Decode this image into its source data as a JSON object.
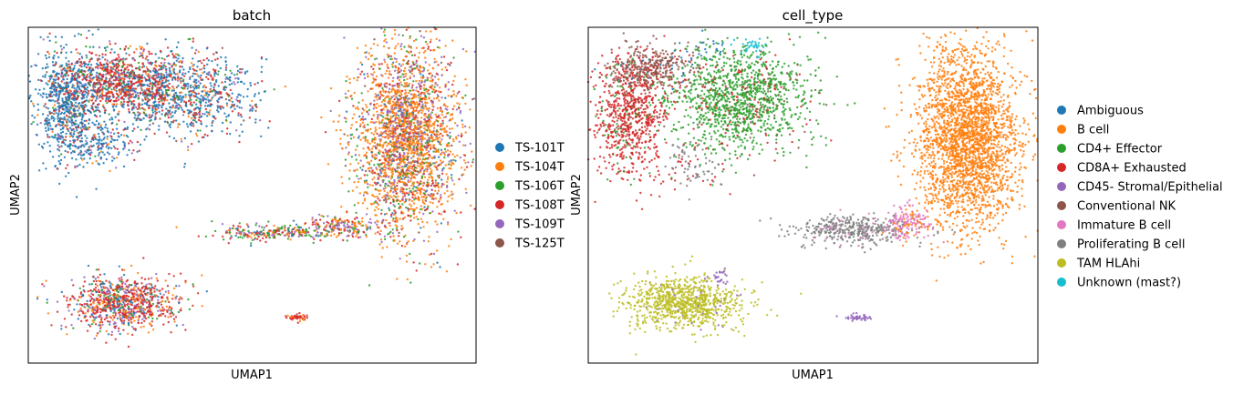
{
  "chart_data": [
    {
      "type": "scatter",
      "title": "batch",
      "xlabel": "UMAP1",
      "ylabel": "UMAP2",
      "xlim": [
        -6,
        14
      ],
      "ylim": [
        -4,
        10
      ],
      "grid": false,
      "ticks": false,
      "legend_position": "right",
      "legend": [
        {
          "name": "TS-101T",
          "color": "#1f77b4"
        },
        {
          "name": "TS-104T",
          "color": "#ff7f0e"
        },
        {
          "name": "TS-106T",
          "color": "#2ca02c"
        },
        {
          "name": "TS-108T",
          "color": "#d62728"
        },
        {
          "name": "TS-109T",
          "color": "#9467bd"
        },
        {
          "name": "TS-125T",
          "color": "#8c564b"
        }
      ],
      "regions": [
        {
          "x": 0.5,
          "y": 7.2,
          "sx": 1.8,
          "sy": 0.9,
          "n": 1100,
          "colors": {
            "TS-101T": 0.55,
            "TS-108T": 0.2,
            "TS-104T": 0.08,
            "TS-106T": 0.06,
            "TS-109T": 0.05,
            "TS-125T": 0.06
          }
        },
        {
          "x": -4.2,
          "y": 7.0,
          "sx": 0.7,
          "sy": 1.1,
          "n": 750,
          "colors": {
            "TS-101T": 0.75,
            "TS-108T": 0.1,
            "TS-104T": 0.05,
            "TS-106T": 0.04,
            "TS-109T": 0.03,
            "TS-125T": 0.03
          }
        },
        {
          "x": -2.0,
          "y": 7.8,
          "sx": 1.2,
          "sy": 0.6,
          "n": 650,
          "colors": {
            "TS-108T": 0.55,
            "TS-101T": 0.2,
            "TS-104T": 0.08,
            "TS-106T": 0.07,
            "TS-109T": 0.05,
            "TS-125T": 0.05
          }
        },
        {
          "x": -3.0,
          "y": 5.2,
          "sx": 0.9,
          "sy": 0.5,
          "n": 250,
          "colors": {
            "TS-101T": 0.8,
            "TS-108T": 0.1,
            "TS-104T": 0.05,
            "TS-109T": 0.05
          }
        },
        {
          "x": 10.9,
          "y": 5.4,
          "sx": 1.15,
          "sy": 1.9,
          "n": 2600,
          "colors": {
            "TS-104T": 0.55,
            "TS-109T": 0.15,
            "TS-108T": 0.12,
            "TS-106T": 0.1,
            "TS-101T": 0.04,
            "TS-125T": 0.04
          }
        },
        {
          "x": 5.0,
          "y": 1.45,
          "sx": 1.4,
          "sy": 0.18,
          "n": 250,
          "colors": {
            "TS-106T": 0.3,
            "TS-108T": 0.25,
            "TS-104T": 0.2,
            "TS-109T": 0.15,
            "TS-101T": 0.1
          }
        },
        {
          "x": 8.0,
          "y": 1.7,
          "sx": 0.9,
          "sy": 0.25,
          "n": 200,
          "colors": {
            "TS-109T": 0.35,
            "TS-104T": 0.3,
            "TS-108T": 0.2,
            "TS-106T": 0.15
          }
        },
        {
          "x": -1.7,
          "y": -1.5,
          "sx": 1.3,
          "sy": 0.55,
          "n": 900,
          "colors": {
            "TS-108T": 0.45,
            "TS-104T": 0.2,
            "TS-109T": 0.15,
            "TS-101T": 0.1,
            "TS-106T": 0.1
          }
        },
        {
          "x": 6.0,
          "y": -2.1,
          "sx": 0.25,
          "sy": 0.07,
          "n": 45,
          "colors": {
            "TS-108T": 0.8,
            "TS-104T": 0.2
          }
        }
      ]
    },
    {
      "type": "scatter",
      "title": "cell_type",
      "xlabel": "UMAP1",
      "ylabel": "UMAP2",
      "xlim": [
        -6,
        14
      ],
      "ylim": [
        -4,
        10
      ],
      "grid": false,
      "ticks": false,
      "legend_position": "right",
      "legend": [
        {
          "name": "Ambiguous",
          "color": "#1f77b4"
        },
        {
          "name": "B cell",
          "color": "#ff7f0e"
        },
        {
          "name": "CD4+ Effector",
          "color": "#2ca02c"
        },
        {
          "name": "CD8A+ Exhausted",
          "color": "#d62728"
        },
        {
          "name": "CD45- Stromal/Epithelial",
          "color": "#9467bd"
        },
        {
          "name": "Conventional NK",
          "color": "#8c564b"
        },
        {
          "name": "Immature B cell",
          "color": "#e377c2"
        },
        {
          "name": "Proliferating B cell",
          "color": "#7f7f7f"
        },
        {
          "name": "TAM HLAhi",
          "color": "#bcbd22"
        },
        {
          "name": "Unknown (mast?)",
          "color": "#17becf"
        }
      ],
      "regions": [
        {
          "x": 0.8,
          "y": 7.0,
          "sx": 1.5,
          "sy": 1.1,
          "n": 1300,
          "colors": {
            "CD4+ Effector": 0.85,
            "CD8A+ Exhausted": 0.1,
            "Conventional NK": 0.05
          }
        },
        {
          "x": -4.1,
          "y": 6.3,
          "sx": 0.8,
          "sy": 1.2,
          "n": 800,
          "colors": {
            "CD8A+ Exhausted": 0.85,
            "CD4+ Effector": 0.1,
            "Conventional NK": 0.05
          }
        },
        {
          "x": -3.2,
          "y": 8.3,
          "sx": 1.0,
          "sy": 0.45,
          "n": 350,
          "colors": {
            "Conventional NK": 0.8,
            "CD8A+ Exhausted": 0.15,
            "Ambiguous": 0.05
          }
        },
        {
          "x": -1.5,
          "y": 4.3,
          "sx": 0.7,
          "sy": 0.5,
          "n": 90,
          "colors": {
            "Proliferating B cell": 0.7,
            "CD8A+ Exhausted": 0.3
          }
        },
        {
          "x": -0.8,
          "y": 9.0,
          "sx": 0.6,
          "sy": 0.3,
          "n": 40,
          "colors": {
            "Ambiguous": 0.6,
            "CD4+ Effector": 0.4
          }
        },
        {
          "x": 1.3,
          "y": 9.2,
          "sx": 0.45,
          "sy": 0.18,
          "n": 35,
          "colors": {
            "Unknown (mast?)": 1.0
          }
        },
        {
          "x": 10.9,
          "y": 5.4,
          "sx": 1.15,
          "sy": 1.9,
          "n": 2600,
          "colors": {
            "B cell": 1.0
          }
        },
        {
          "x": 5.8,
          "y": 1.55,
          "sx": 1.3,
          "sy": 0.3,
          "n": 400,
          "colors": {
            "Proliferating B cell": 0.9,
            "Immature B cell": 0.1
          }
        },
        {
          "x": 8.2,
          "y": 1.8,
          "sx": 0.55,
          "sy": 0.35,
          "n": 160,
          "colors": {
            "Immature B cell": 0.8,
            "B cell": 0.2
          }
        },
        {
          "x": -1.7,
          "y": -1.5,
          "sx": 1.3,
          "sy": 0.55,
          "n": 900,
          "colors": {
            "TAM HLAhi": 0.97,
            "CD45- Stromal/Epithelial": 0.03
          }
        },
        {
          "x": 6.0,
          "y": -2.1,
          "sx": 0.25,
          "sy": 0.07,
          "n": 45,
          "colors": {
            "CD45- Stromal/Epithelial": 1.0
          }
        },
        {
          "x": -0.2,
          "y": -0.35,
          "sx": 0.2,
          "sy": 0.2,
          "n": 25,
          "colors": {
            "CD45- Stromal/Epithelial": 1.0
          }
        }
      ]
    }
  ]
}
